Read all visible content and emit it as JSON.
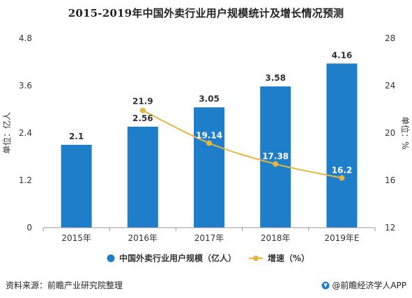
{
  "title": "2015-2019年中国外卖行业用户规模统计及增长情况预测",
  "chart_data": {
    "type": "bar",
    "categories": [
      "2015年",
      "2016年",
      "2017年",
      "2018年",
      "2019年E"
    ],
    "series": [
      {
        "name": "中国外卖行业用户规模（亿人）",
        "type": "bar",
        "axis": "left",
        "color": "#1f7ec9",
        "values": [
          2.1,
          2.56,
          3.05,
          3.58,
          4.16
        ],
        "labels": [
          "2.1",
          "2.56",
          "3.05",
          "3.58",
          "4.16"
        ]
      },
      {
        "name": "增速（%）",
        "type": "line",
        "axis": "right",
        "color": "#e8b53c",
        "values": [
          null,
          21.9,
          19.14,
          17.38,
          16.2
        ],
        "labels": [
          "",
          "21.9",
          "19.14",
          "17.38",
          "16.2"
        ]
      }
    ],
    "y_left": {
      "label": "单位：亿人",
      "ylim": [
        0,
        4.8
      ],
      "ticks": [
        0,
        1.2,
        2.4,
        3.6,
        4.8
      ],
      "tick_labels": [
        "0",
        "1.2",
        "2.4",
        "3.6",
        "4.8"
      ]
    },
    "y_right": {
      "label": "单位：%",
      "ylim": [
        12,
        28
      ],
      "ticks": [
        12,
        16,
        20,
        24,
        28
      ],
      "tick_labels": [
        "12",
        "16",
        "20",
        "24",
        "28"
      ]
    },
    "grid": false,
    "legend_position": "bottom"
  },
  "footer": {
    "source": "资料来源：前瞻产业研究院整理",
    "brand": "@前瞻经济学人APP"
  }
}
